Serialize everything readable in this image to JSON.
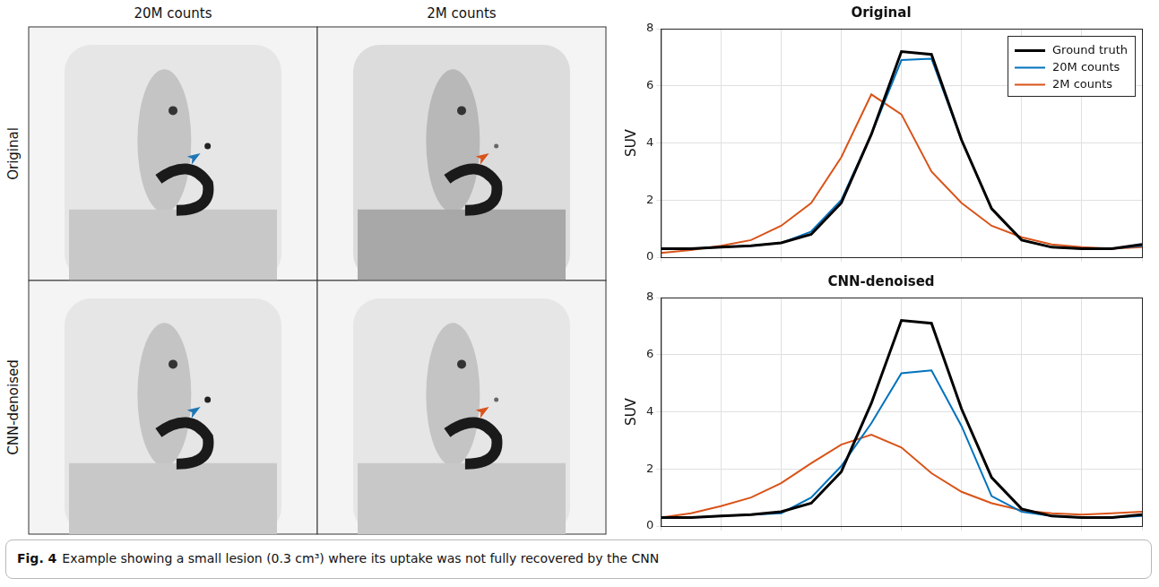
{
  "figure": {
    "column_titles": [
      "20M counts",
      "2M counts"
    ],
    "row_titles": [
      "Original",
      "CNN-denoised"
    ],
    "caption": {
      "label": "Fig. 4",
      "text": "Example showing a small lesion (0.3 cm³) where its uptake was not fully recovered by the CNN"
    }
  },
  "chart_data": [
    {
      "type": "line",
      "title": "Original",
      "y_label": "SUV",
      "x": [
        0,
        1,
        2,
        3,
        4,
        5,
        6,
        7,
        8,
        9,
        10,
        11,
        12,
        13,
        14,
        15,
        16
      ],
      "xlim": [
        0,
        16
      ],
      "xticks": [
        0,
        2,
        4,
        6,
        8,
        10,
        12,
        14,
        16
      ],
      "ylim": [
        0,
        8
      ],
      "yticks": [
        0,
        2,
        4,
        6,
        8
      ],
      "grid": true,
      "tick_labels": "y",
      "legend": "upper right",
      "series": [
        {
          "name": "Ground truth",
          "color": "#000000",
          "values": [
            0.3,
            0.3,
            0.35,
            0.4,
            0.5,
            0.8,
            1.9,
            4.3,
            7.2,
            7.1,
            4.1,
            1.7,
            0.6,
            0.35,
            0.3,
            0.3,
            0.45
          ]
        },
        {
          "name": "20M counts",
          "color": "#0072bd",
          "values": [
            0.3,
            0.3,
            0.35,
            0.4,
            0.5,
            0.9,
            2.0,
            4.3,
            6.9,
            6.95,
            4.1,
            1.7,
            0.6,
            0.35,
            0.3,
            0.3,
            0.4
          ]
        },
        {
          "name": "2M counts",
          "color": "#d95319",
          "values": [
            0.15,
            0.25,
            0.4,
            0.6,
            1.1,
            1.9,
            3.5,
            5.7,
            5.0,
            3.0,
            1.9,
            1.1,
            0.7,
            0.45,
            0.35,
            0.3,
            0.35
          ]
        }
      ]
    },
    {
      "type": "line",
      "title": "CNN-denoised",
      "y_label": "SUV",
      "x": [
        0,
        1,
        2,
        3,
        4,
        5,
        6,
        7,
        8,
        9,
        10,
        11,
        12,
        13,
        14,
        15,
        16
      ],
      "xlim": [
        0,
        16
      ],
      "xticks": [
        0,
        2,
        4,
        6,
        8,
        10,
        12,
        14,
        16
      ],
      "ylim": [
        0,
        8
      ],
      "yticks": [
        0,
        2,
        4,
        6,
        8
      ],
      "grid": true,
      "tick_labels": "y",
      "series": [
        {
          "name": "Ground truth",
          "color": "#000000",
          "values": [
            0.3,
            0.3,
            0.35,
            0.4,
            0.5,
            0.8,
            1.9,
            4.3,
            7.2,
            7.1,
            4.1,
            1.7,
            0.6,
            0.35,
            0.3,
            0.3,
            0.4
          ]
        },
        {
          "name": "20M counts",
          "color": "#0072bd",
          "values": [
            0.3,
            0.3,
            0.35,
            0.4,
            0.45,
            1.0,
            2.1,
            3.6,
            5.35,
            5.45,
            3.5,
            1.05,
            0.5,
            0.35,
            0.3,
            0.3,
            0.35
          ]
        },
        {
          "name": "2M counts",
          "color": "#d95319",
          "values": [
            0.3,
            0.45,
            0.7,
            1.0,
            1.5,
            2.2,
            2.85,
            3.2,
            2.75,
            1.85,
            1.2,
            0.8,
            0.55,
            0.45,
            0.4,
            0.45,
            0.5
          ]
        }
      ]
    }
  ]
}
